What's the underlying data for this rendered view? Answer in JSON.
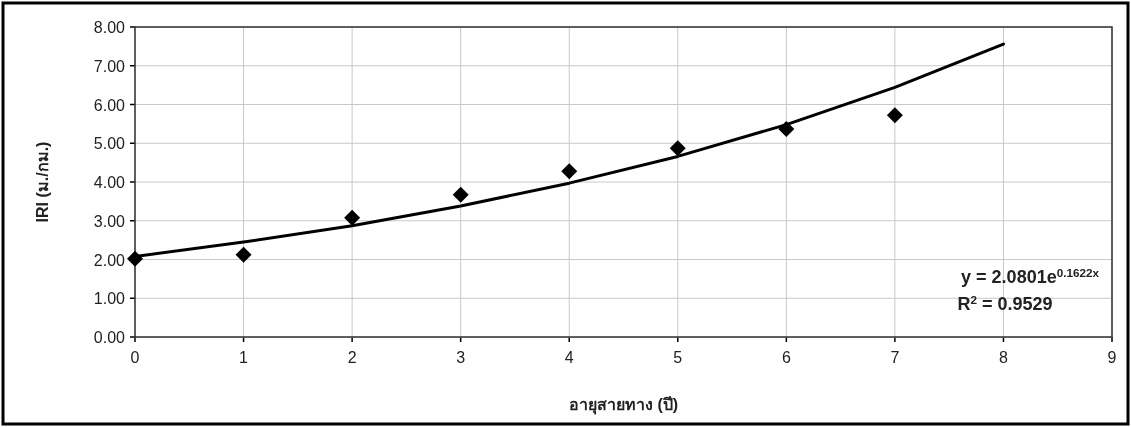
{
  "chart_data": {
    "type": "scatter",
    "xlabel": "อายุสายทาง (ปี)",
    "ylabel": "IRI (ม./กม.)",
    "annotations": [
      "y = 2.0801e$^{0.1622x}$",
      "R$^{2}$ = 0.9529"
    ],
    "xlim": [
      0,
      9
    ],
    "xticks": [
      0,
      1,
      2,
      3,
      4,
      5,
      6,
      7,
      8,
      9
    ],
    "ylim": [
      0,
      8
    ],
    "yticks": [
      {
        "value": 0,
        "label": "0.00"
      },
      {
        "value": 1,
        "label": "1.00"
      },
      {
        "value": 2,
        "label": "2.00"
      },
      {
        "value": 3,
        "label": "3.00"
      },
      {
        "value": 4,
        "label": "4.00"
      },
      {
        "value": 5,
        "label": "5.00"
      },
      {
        "value": 6,
        "label": "6.00"
      },
      {
        "value": 7,
        "label": "7.00"
      },
      {
        "value": 8,
        "label": "8.00"
      }
    ],
    "grid": true,
    "series": [
      {
        "type": "scatter",
        "color": "#000000",
        "marker": "diamond",
        "x": [
          0,
          1,
          2,
          3,
          4,
          5,
          6,
          7
        ],
        "values": [
          2.02,
          2.12,
          3.08,
          3.67,
          4.28,
          4.87,
          5.37,
          5.72
        ]
      },
      {
        "type": "line",
        "color": "#000000",
        "line_style": "solid",
        "x": [
          0,
          1,
          2,
          3,
          4,
          5,
          6,
          7,
          8
        ],
        "values": [
          2.08,
          2.45,
          2.87,
          3.38,
          3.97,
          4.66,
          5.48,
          6.44,
          7.56
        ]
      }
    ]
  }
}
